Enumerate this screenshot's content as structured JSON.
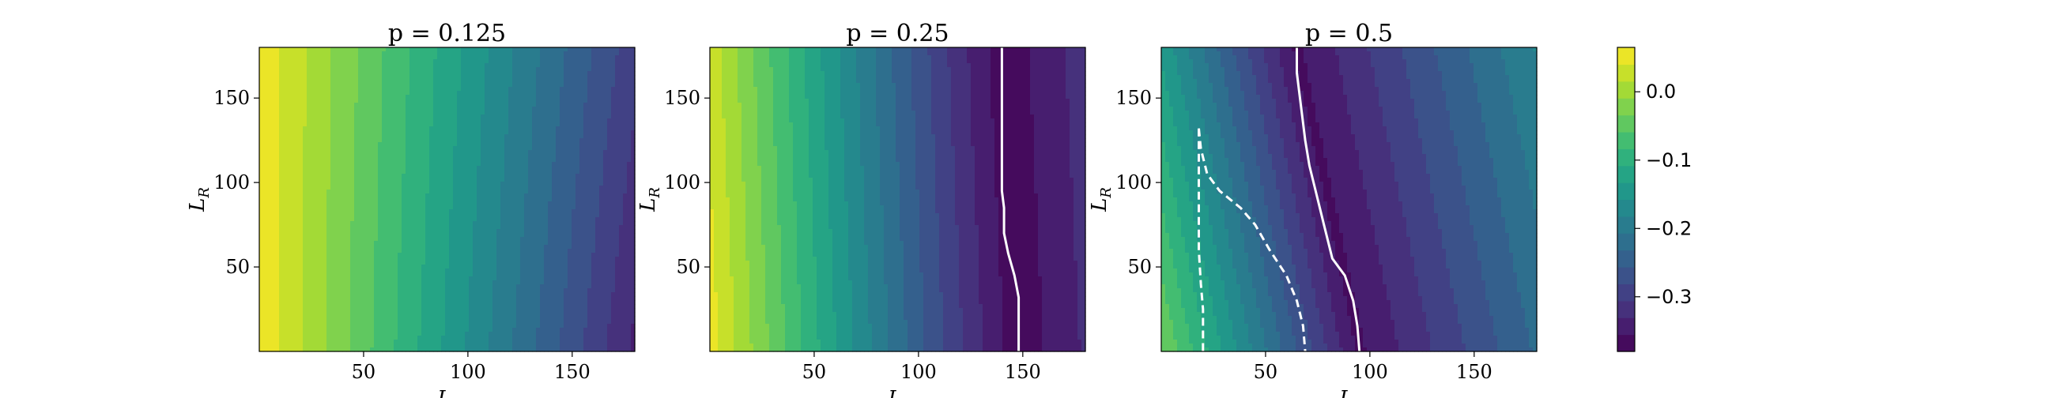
{
  "chart_data": [
    {
      "type": "heatmap",
      "title": "p = 0.125",
      "xlabel": "L_I",
      "ylabel": "L_R",
      "xlim": [
        0,
        180
      ],
      "ylim": [
        0,
        180
      ],
      "xticks": [
        50,
        100,
        150
      ],
      "yticks": [
        50,
        100,
        150
      ],
      "contours": []
    },
    {
      "type": "heatmap",
      "title": "p = 0.25",
      "xlabel": "L_I",
      "ylabel": "L_R",
      "xlim": [
        0,
        180
      ],
      "ylim": [
        0,
        180
      ],
      "xticks": [
        50,
        100,
        150
      ],
      "yticks": [
        50,
        100,
        150
      ],
      "contours": [
        {
          "style": "solid",
          "color": "#ffffff",
          "points": [
            [
              140,
              180
            ],
            [
              140,
              150
            ],
            [
              140,
              120
            ],
            [
              140,
              95
            ],
            [
              141,
              85
            ],
            [
              141,
              70
            ],
            [
              143,
              58
            ],
            [
              146,
              45
            ],
            [
              148,
              32
            ],
            [
              148,
              15
            ],
            [
              148,
              0
            ]
          ]
        }
      ]
    },
    {
      "type": "heatmap",
      "title": "p = 0.5",
      "xlabel": "L_I",
      "ylabel": "L_R",
      "xlim": [
        0,
        180
      ],
      "ylim": [
        0,
        180
      ],
      "xticks": [
        50,
        100,
        150
      ],
      "yticks": [
        50,
        100,
        150
      ],
      "contours": [
        {
          "style": "solid",
          "color": "#ffffff",
          "points": [
            [
              65,
              180
            ],
            [
              65,
              165
            ],
            [
              67,
              145
            ],
            [
              69,
              125
            ],
            [
              71,
              110
            ],
            [
              74,
              95
            ],
            [
              78,
              75
            ],
            [
              82,
              55
            ],
            [
              88,
              45
            ],
            [
              92,
              30
            ],
            [
              94,
              15
            ],
            [
              95,
              0
            ]
          ]
        },
        {
          "style": "dashed",
          "color": "#ffffff",
          "points": [
            [
              18,
              132
            ],
            [
              19,
              120
            ],
            [
              22,
              105
            ],
            [
              28,
              95
            ],
            [
              38,
              85
            ],
            [
              45,
              75
            ],
            [
              52,
              60
            ],
            [
              60,
              45
            ],
            [
              65,
              30
            ],
            [
              68,
              15
            ],
            [
              69,
              0
            ]
          ]
        },
        {
          "style": "dashed",
          "color": "#ffffff",
          "points": [
            [
              18,
              132
            ],
            [
              18,
              110
            ],
            [
              18,
              85
            ],
            [
              18,
              60
            ],
            [
              19,
              40
            ],
            [
              20,
              25
            ],
            [
              20,
              0
            ]
          ]
        }
      ]
    }
  ],
  "colorbar": {
    "colormap": "viridis",
    "min": -0.38,
    "max": 0.065,
    "ticks": [
      0.0,
      -0.1,
      -0.2,
      -0.3
    ],
    "tick_labels": [
      "0.0",
      "−0.1",
      "−0.2",
      "−0.3"
    ]
  }
}
